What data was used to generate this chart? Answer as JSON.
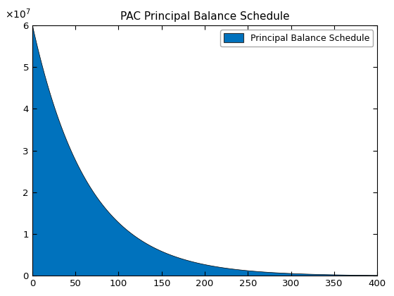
{
  "title": "PAC Principal Balance Schedule",
  "legend_label": "Principal Balance Schedule",
  "fill_color": "#0072BD",
  "edge_color": "#000000",
  "x_min": 0,
  "x_max": 400,
  "y_min": 0,
  "y_max": 60000000.0,
  "x_ticks": [
    0,
    50,
    100,
    150,
    200,
    250,
    300,
    350,
    400
  ],
  "y_ticks": [
    0,
    10000000.0,
    20000000.0,
    30000000.0,
    40000000.0,
    50000000.0,
    60000000.0
  ],
  "initial_value": 60000000.0,
  "decay_rate": 0.0155,
  "figsize": [
    5.6,
    4.2
  ],
  "dpi": 100
}
